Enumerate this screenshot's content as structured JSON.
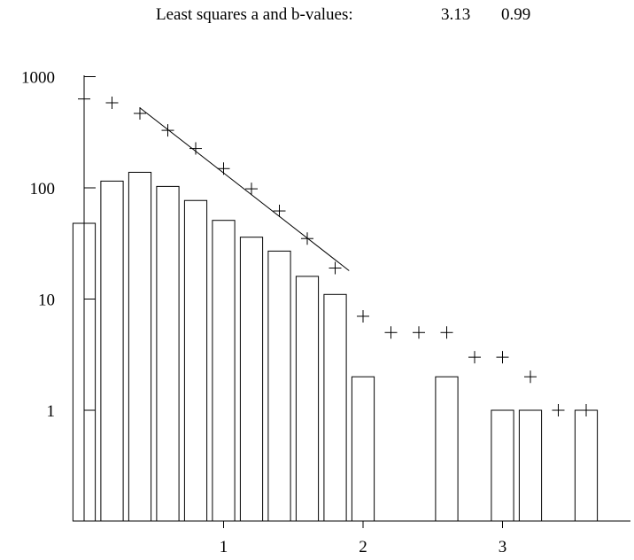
{
  "header": {
    "label": "Least squares a and b-values:",
    "a_value": "3.13",
    "b_value": "0.99"
  },
  "chart_data": {
    "type": "bar",
    "title": "Least squares a and b-values:",
    "xlabel": "",
    "ylabel": "",
    "y_scale": "log",
    "ylim": [
      0.1,
      1000
    ],
    "xlim": [
      -0.1,
      3.9
    ],
    "grid": false,
    "x_ticks": [
      {
        "value": 1,
        "label": "1"
      },
      {
        "value": 2,
        "label": "2"
      },
      {
        "value": 3,
        "label": "3"
      }
    ],
    "y_ticks": [
      {
        "value": 1,
        "label": "1"
      },
      {
        "value": 10,
        "label": "10"
      },
      {
        "value": 100,
        "label": "100"
      },
      {
        "value": 1000,
        "label": "1000"
      }
    ],
    "bar_width": 0.16,
    "series": [
      {
        "type": "bar",
        "x": [
          0.0,
          0.2,
          0.4,
          0.6,
          0.8,
          1.0,
          1.2,
          1.4,
          1.6,
          1.8,
          2.0,
          2.2,
          2.4,
          2.6,
          2.8,
          3.0,
          3.2,
          3.4,
          3.6
        ],
        "values": [
          48,
          115,
          138,
          103,
          77,
          51,
          36,
          27,
          16,
          11,
          2,
          0,
          0,
          2,
          0,
          1,
          1,
          0,
          1
        ]
      },
      {
        "type": "scatter",
        "marker": "+",
        "x": [
          0.0,
          0.2,
          0.4,
          0.6,
          0.8,
          1.0,
          1.2,
          1.4,
          1.6,
          1.8,
          2.0,
          2.2,
          2.4,
          2.6,
          2.8,
          3.0,
          3.2,
          3.4,
          3.6
        ],
        "values": [
          630,
          582,
          467,
          329,
          226,
          149,
          98,
          62,
          35,
          19,
          7,
          5,
          5,
          5,
          3,
          3,
          2,
          1,
          1
        ]
      },
      {
        "type": "line",
        "x": [
          0.4,
          1.9
        ],
        "values": [
          524,
          18
        ]
      }
    ]
  }
}
